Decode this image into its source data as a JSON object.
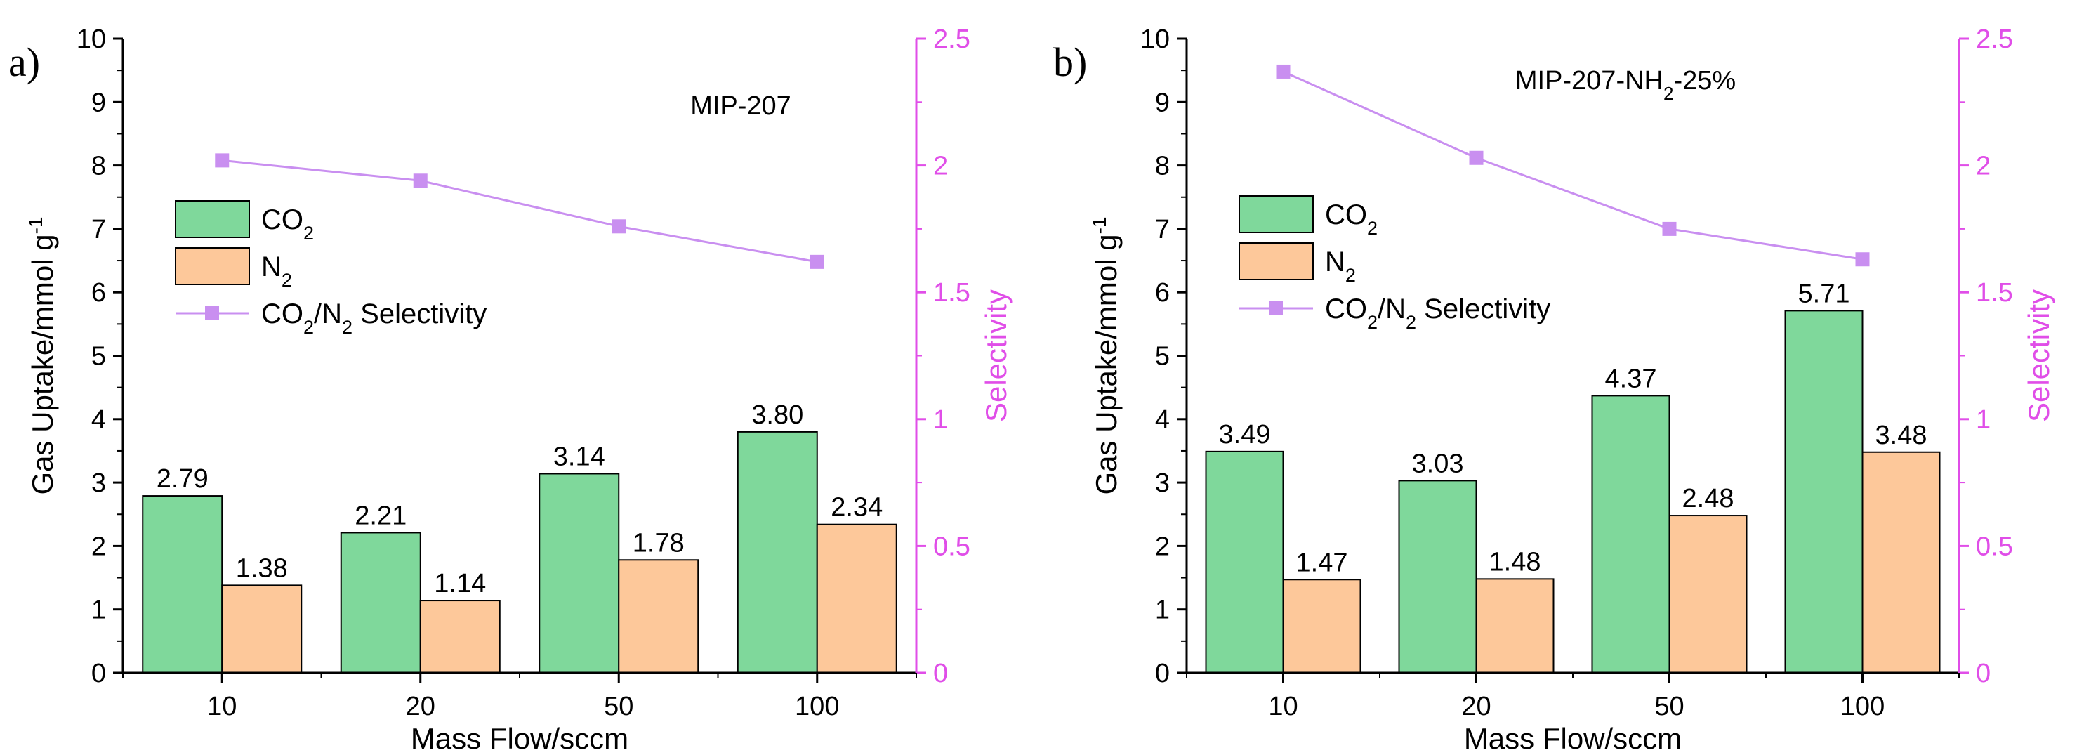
{
  "colors": {
    "co2_fill": "#7fd89b",
    "n2_fill": "#fdc89a",
    "selectivity": "#c98ff0",
    "selectivity_axis": "#e04ee8",
    "bar_stroke": "#000000"
  },
  "chart_data": [
    {
      "type": "bar",
      "panel_label": "a)",
      "title": "MIP-207",
      "categories": [
        "10",
        "20",
        "50",
        "100"
      ],
      "xlabel": "Mass Flow/sccm",
      "ylabel": "Gas Uptake/mmol g-1",
      "ylabel_parts": {
        "main": "Gas Uptake/mmol g",
        "sup": "-1"
      },
      "ylim": [
        0,
        10
      ],
      "yticks": [
        "0",
        "1",
        "2",
        "3",
        "4",
        "5",
        "6",
        "7",
        "8",
        "9",
        "10"
      ],
      "y2label": "Selectivity",
      "y2lim": [
        0,
        2.5
      ],
      "y2ticks": [
        "0",
        "0.5",
        "1",
        "1.5",
        "2",
        "2.5"
      ],
      "series": [
        {
          "name": "CO2",
          "kind": "bar",
          "values": [
            2.79,
            2.21,
            3.14,
            3.8
          ],
          "labels": [
            "2.79",
            "2.21",
            "3.14",
            "3.80"
          ]
        },
        {
          "name": "N2",
          "kind": "bar",
          "values": [
            1.38,
            1.14,
            1.78,
            2.34
          ],
          "labels": [
            "1.38",
            "1.14",
            "1.78",
            "2.34"
          ]
        },
        {
          "name": "CO2/N2 Selectivity",
          "kind": "line",
          "axis": "right",
          "values": [
            2.02,
            1.94,
            1.76,
            1.62
          ]
        }
      ],
      "legend": {
        "position": "center-left",
        "entries": [
          {
            "main": "CO",
            "sub": "2",
            "rest": ""
          },
          {
            "main": "N",
            "sub": "2",
            "rest": ""
          },
          {
            "main": "CO",
            "sub": "2",
            "rest": "/N",
            "sub2": "2",
            "tail": " Selectivity"
          }
        ]
      }
    },
    {
      "type": "bar",
      "panel_label": "b)",
      "title": "MIP-207-NH2-25%",
      "title_parts": {
        "pre": "MIP-207-NH",
        "sub": "2",
        "post": "-25%"
      },
      "categories": [
        "10",
        "20",
        "50",
        "100"
      ],
      "xlabel": "Mass Flow/sccm",
      "ylabel": "Gas Uptake/mmol g-1",
      "ylabel_parts": {
        "main": "Gas Uptake/mmol g",
        "sup": "-1"
      },
      "ylim": [
        0,
        10
      ],
      "yticks": [
        "0",
        "1",
        "2",
        "3",
        "4",
        "5",
        "6",
        "7",
        "8",
        "9",
        "10"
      ],
      "y2label": "Selectivity",
      "y2lim": [
        0,
        2.5
      ],
      "y2ticks": [
        "0",
        "0.5",
        "1",
        "1.5",
        "2",
        "2.5"
      ],
      "series": [
        {
          "name": "CO2",
          "kind": "bar",
          "values": [
            3.49,
            3.03,
            4.37,
            5.71
          ],
          "labels": [
            "3.49",
            "3.03",
            "4.37",
            "5.71"
          ]
        },
        {
          "name": "N2",
          "kind": "bar",
          "values": [
            1.47,
            1.48,
            2.48,
            3.48
          ],
          "labels": [
            "1.47",
            "1.48",
            "2.48",
            "3.48"
          ]
        },
        {
          "name": "CO2/N2 Selectivity",
          "kind": "line",
          "axis": "right",
          "values": [
            2.37,
            2.03,
            1.75,
            1.63
          ]
        }
      ],
      "legend": {
        "position": "center-left",
        "entries": [
          {
            "main": "CO",
            "sub": "2",
            "rest": ""
          },
          {
            "main": "N",
            "sub": "2",
            "rest": ""
          },
          {
            "main": "CO",
            "sub": "2",
            "rest": "/N",
            "sub2": "2",
            "tail": " Selectivity"
          }
        ]
      }
    }
  ]
}
